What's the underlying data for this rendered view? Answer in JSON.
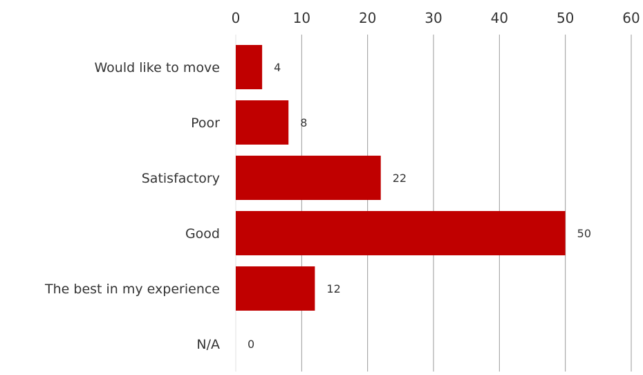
{
  "chart_data": {
    "type": "bar",
    "orientation": "horizontal",
    "categories": [
      "Would like to move",
      "Poor",
      "Satisfactory",
      "Good",
      "The best in my experience",
      "N/A"
    ],
    "values": [
      4,
      8,
      22,
      50,
      12,
      0
    ],
    "xlim": [
      0,
      60
    ],
    "x_ticks": [
      0,
      10,
      20,
      30,
      40,
      50,
      60
    ],
    "x_axis_position": "top",
    "grid": true,
    "data_labels": true,
    "bar_color": "#c00000",
    "title": "",
    "xlabel": "",
    "ylabel": ""
  }
}
